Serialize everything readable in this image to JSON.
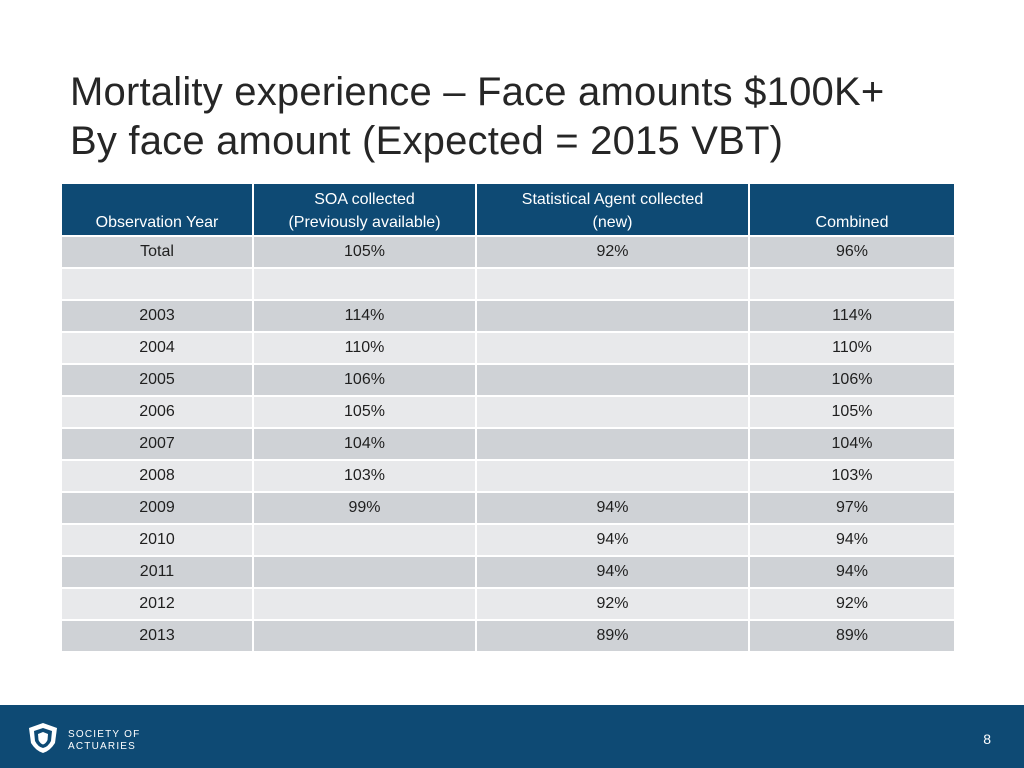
{
  "slide": {
    "title_line1": "Mortality experience – Face amounts $100K+",
    "title_line2": "By face amount (Expected = 2015 VBT)",
    "page_number": "8"
  },
  "table": {
    "headers": [
      [
        "Observation Year"
      ],
      [
        "SOA collected",
        "(Previously available)"
      ],
      [
        "Statistical Agent collected",
        "(new)"
      ],
      [
        "Combined"
      ]
    ],
    "rows": [
      [
        "Total",
        "105%",
        "92%",
        "96%"
      ],
      [
        "",
        "",
        "",
        ""
      ],
      [
        "2003",
        "114%",
        "",
        "114%"
      ],
      [
        "2004",
        "110%",
        "",
        "110%"
      ],
      [
        "2005",
        "106%",
        "",
        "106%"
      ],
      [
        "2006",
        "105%",
        "",
        "105%"
      ],
      [
        "2007",
        "104%",
        "",
        "104%"
      ],
      [
        "2008",
        "103%",
        "",
        "103%"
      ],
      [
        "2009",
        "99%",
        "94%",
        "97%"
      ],
      [
        "2010",
        "",
        "94%",
        "94%"
      ],
      [
        "2011",
        "",
        "94%",
        "94%"
      ],
      [
        "2012",
        "",
        "92%",
        "92%"
      ],
      [
        "2013",
        "",
        "89%",
        "89%"
      ]
    ]
  },
  "footer": {
    "logo_line1": "SOCIETY OF",
    "logo_line2": "ACTUARIES",
    "logo_icon": "shield-icon"
  },
  "colors": {
    "header_bg": "#0e4a74",
    "row_dark": "#cfd2d6",
    "row_light": "#e8e9eb",
    "footer_bg": "#0e4a74"
  }
}
